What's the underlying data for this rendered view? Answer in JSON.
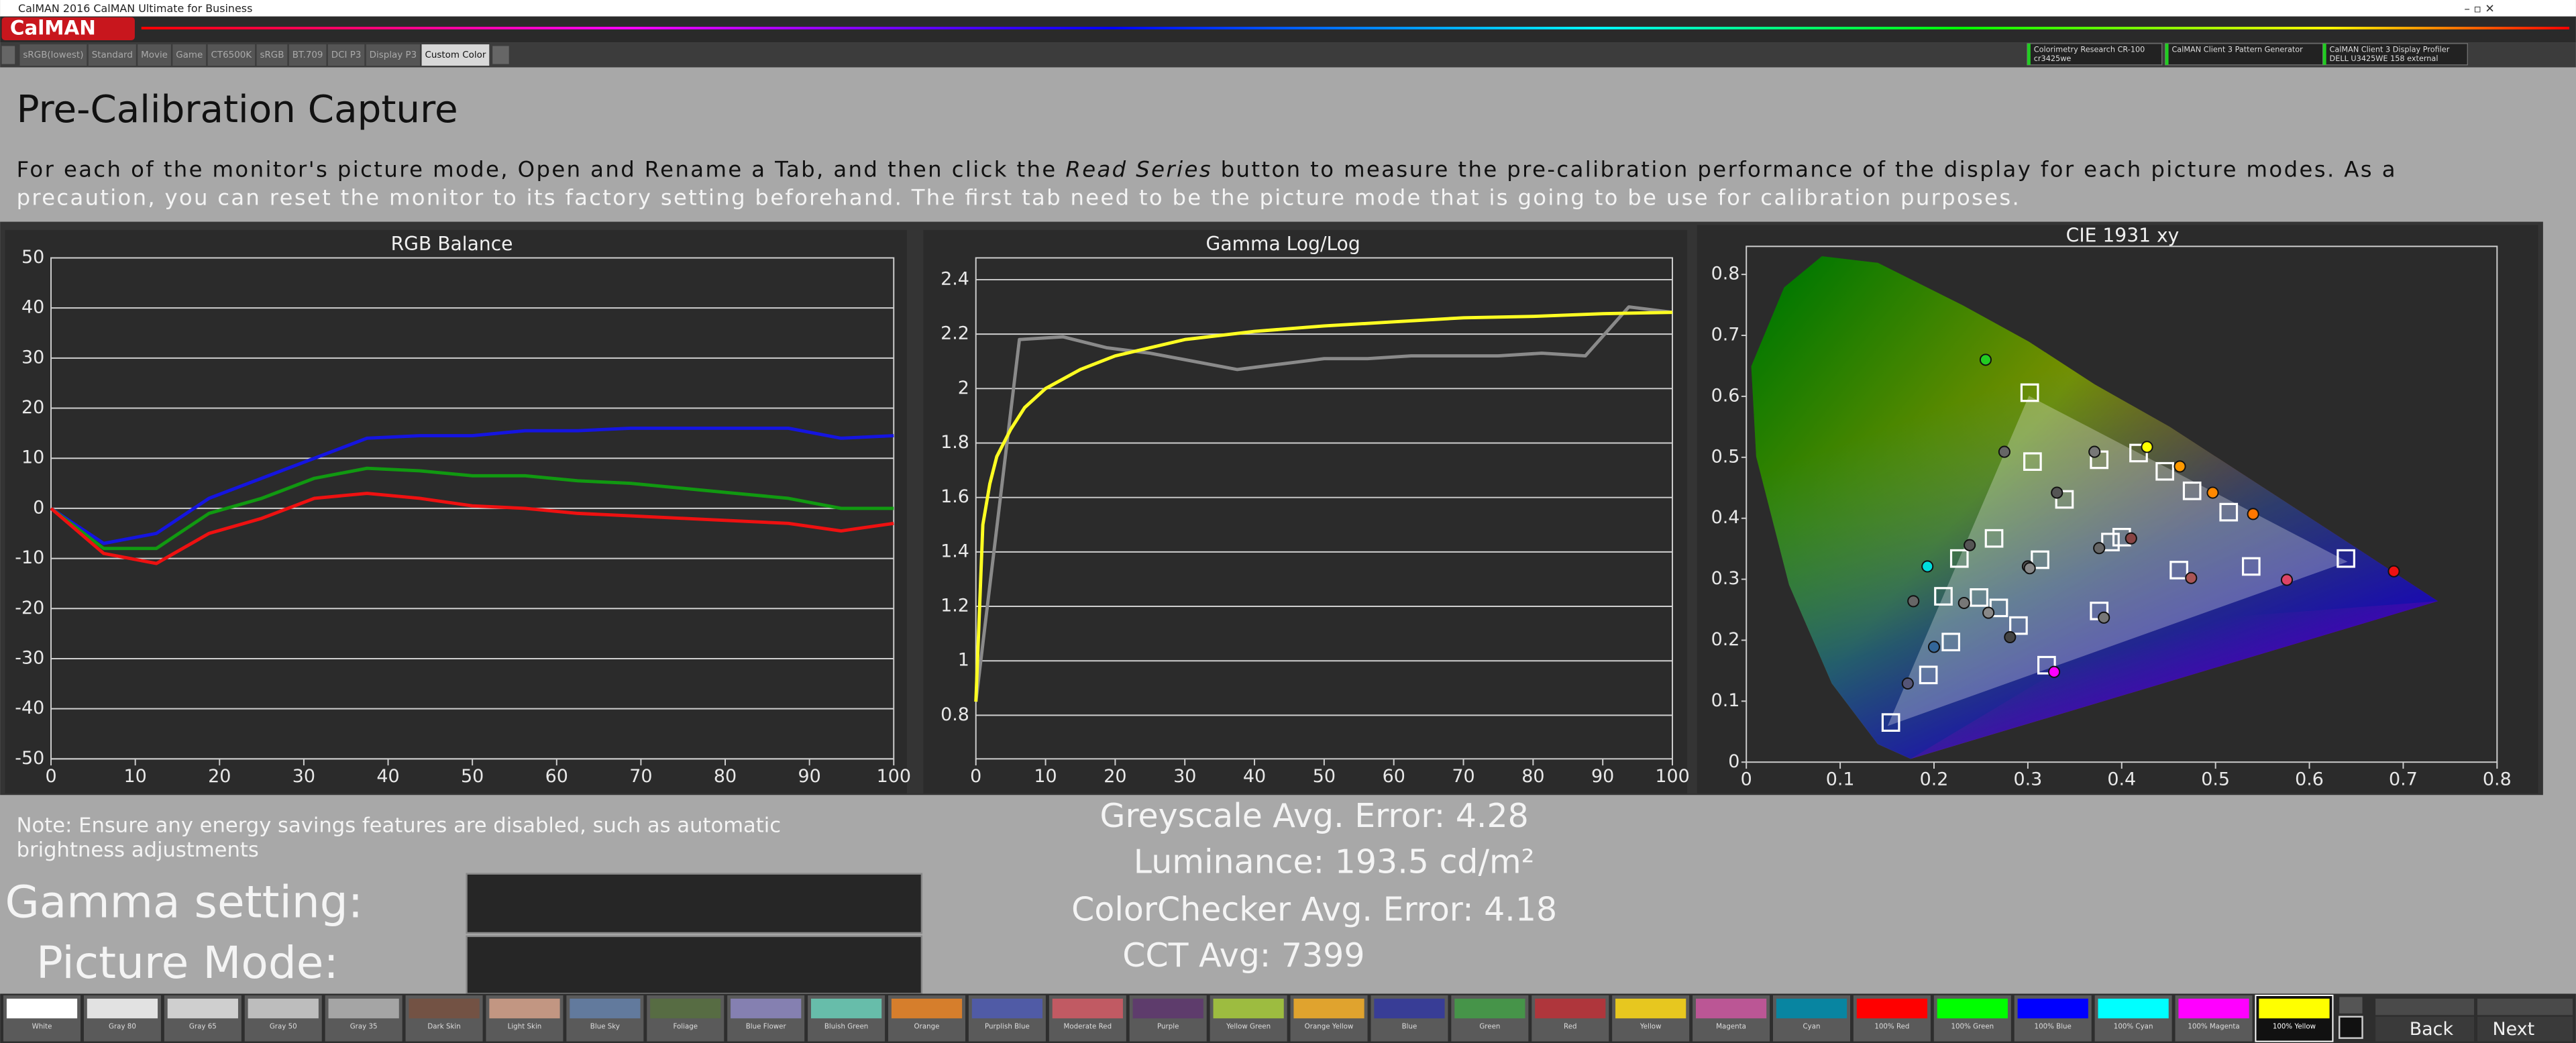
{
  "window": {
    "title": "CalMAN 2016 CalMAN Ultimate for Business"
  },
  "app_button": "CalMAN",
  "tabs": [
    "sRGB(lowest)",
    "Standard",
    "Movie",
    "Game",
    "CT6500K",
    "sRGB",
    "BT.709",
    "DCI P3",
    "Display P3",
    "Custom Color"
  ],
  "devices": [
    {
      "name": "Colorimetry Research CR-100",
      "detail": "cr3425we"
    },
    {
      "name": "CalMAN Client 3 Pattern Generator",
      "detail": ""
    },
    {
      "name": "CalMAN Client 3 Display Profiler",
      "detail": "DELL U3425WE 158 external"
    }
  ],
  "heading": "Pre-Calibration Capture",
  "instructions": {
    "before": "For each of the monitor's picture mode, Open and Rename a Tab, and then click the ",
    "emphasis": "Read Series",
    "after": " button to measure the pre-calibration performance of the display for each picture modes. As a",
    "line2": "precaution, you can reset the monitor to its factory setting beforehand. The first tab need to be the picture mode that is going to be use for calibration purposes."
  },
  "chart_data": [
    {
      "type": "line",
      "title": "RGB Balance",
      "x": [
        0,
        6.25,
        12.5,
        18.75,
        25,
        31.25,
        37.5,
        43.75,
        50,
        56.25,
        62.5,
        68.75,
        75,
        81.25,
        87.5,
        93.75,
        100
      ],
      "series": [
        {
          "color": "#1515e0",
          "values": [
            0,
            -7,
            -5,
            2,
            6,
            10,
            14,
            14.5,
            14.5,
            15.5,
            15.5,
            16,
            16,
            16,
            16,
            14,
            14.5
          ]
        },
        {
          "color": "#119911",
          "values": [
            0,
            -8,
            -8,
            -1,
            2,
            6,
            8,
            7.5,
            6.5,
            6.5,
            5.5,
            5,
            4,
            3,
            2,
            0,
            0
          ]
        },
        {
          "color": "#ee1111",
          "values": [
            0,
            -9,
            -11,
            -5,
            -2,
            2,
            3,
            2,
            0.5,
            0,
            -1,
            -1.5,
            -2,
            -2.5,
            -3,
            -4.5,
            -3
          ]
        }
      ],
      "xlim": [
        0,
        100
      ],
      "xticks": [
        0,
        10,
        20,
        30,
        40,
        50,
        60,
        70,
        80,
        90,
        100
      ],
      "ylim": [
        -50,
        50
      ],
      "yticks": [
        -50,
        -40,
        -30,
        -20,
        -10,
        0,
        10,
        20,
        30,
        40,
        50
      ],
      "grid": true
    },
    {
      "type": "line",
      "title": "Gamma Log/Log",
      "series": [
        {
          "color": "#8a8a8a",
          "x": [
            0,
            6.25,
            12.5,
            18.75,
            25,
            31.25,
            37.5,
            43.75,
            50,
            56.25,
            62.5,
            68.75,
            75,
            81.25,
            87.5,
            93.75,
            100
          ],
          "values": [
            0.85,
            2.18,
            2.19,
            2.15,
            2.13,
            2.1,
            2.07,
            2.09,
            2.11,
            2.11,
            2.12,
            2.12,
            2.12,
            2.13,
            2.12,
            2.3,
            2.28
          ]
        },
        {
          "color": "#ffff22",
          "x": [
            0,
            1,
            2,
            3,
            5,
            7,
            10,
            15,
            20,
            30,
            40,
            50,
            60,
            70,
            80,
            90,
            100
          ],
          "values": [
            0.85,
            1.5,
            1.65,
            1.75,
            1.85,
            1.93,
            2.0,
            2.07,
            2.12,
            2.18,
            2.21,
            2.23,
            2.245,
            2.26,
            2.265,
            2.275,
            2.28
          ]
        }
      ],
      "xlim": [
        0,
        100
      ],
      "xticks": [
        0,
        10,
        20,
        30,
        40,
        50,
        60,
        70,
        80,
        90,
        100
      ],
      "ylim": [
        0.64,
        2.48
      ],
      "yticks": [
        0.8,
        1,
        1.2,
        1.4,
        1.6,
        1.8,
        2,
        2.2,
        2.4
      ],
      "grid": true
    },
    {
      "type": "scatter",
      "title": "CIE 1931 xy",
      "series": [
        {
          "marker": "square",
          "color": "#ffffff",
          "x": [
            0.302,
            0.305,
            0.376,
            0.418,
            0.446,
            0.475,
            0.514,
            0.538,
            0.639,
            0.461,
            0.388,
            0.376,
            0.4,
            0.339,
            0.313,
            0.264,
            0.227,
            0.21,
            0.248,
            0.269,
            0.29,
            0.218,
            0.194,
            0.32,
            0.154
          ],
          "y": [
            0.606,
            0.493,
            0.496,
            0.507,
            0.477,
            0.445,
            0.41,
            0.321,
            0.334,
            0.315,
            0.361,
            0.248,
            0.369,
            0.431,
            0.332,
            0.367,
            0.334,
            0.272,
            0.27,
            0.253,
            0.224,
            0.197,
            0.143,
            0.159,
            0.065
          ]
        },
        {
          "marker": "circle",
          "x": [
            0.255,
            0.275,
            0.371,
            0.427,
            0.462,
            0.497,
            0.54,
            0.69,
            0.576,
            0.474,
            0.41,
            0.376,
            0.331,
            0.3,
            0.238,
            0.193,
            0.178,
            0.232,
            0.258,
            0.281,
            0.2,
            0.172,
            0.381,
            0.328,
            0.302
          ],
          "y": [
            0.66,
            0.509,
            0.509,
            0.517,
            0.485,
            0.442,
            0.407,
            0.313,
            0.299,
            0.302,
            0.367,
            0.351,
            0.442,
            0.321,
            0.356,
            0.321,
            0.264,
            0.261,
            0.245,
            0.205,
            0.189,
            0.129,
            0.237,
            0.148,
            0.318
          ],
          "colors": [
            "#22cc22",
            "#666666",
            "#777777",
            "#ffff00",
            "#ff9900",
            "#ff8800",
            "#ff7700",
            "#ee1111",
            "#dd4466",
            "#aa5555",
            "#884444",
            "#666666",
            "#555555",
            "#555555",
            "#555555",
            "#00dddd",
            "#666666",
            "#777777",
            "#888888",
            "#444444",
            "#336699",
            "#555577",
            "#777777",
            "#ff00ff",
            "#888888"
          ]
        }
      ],
      "xlim": [
        0,
        0.8
      ],
      "xticks": [
        0,
        0.1,
        0.2,
        0.3,
        0.4,
        0.5,
        0.6,
        0.7,
        0.8
      ],
      "ylim": [
        0,
        0.846
      ],
      "yticks": [
        0,
        0.1,
        0.2,
        0.3,
        0.4,
        0.5,
        0.6,
        0.7,
        0.8
      ],
      "grid": false
    }
  ],
  "note": [
    "Note: Ensure any energy savings features are disabled, such as automatic",
    "brightness adjustments"
  ],
  "fields": [
    {
      "label": "Gamma setting:"
    },
    {
      "label": "Picture Mode:"
    }
  ],
  "stats": [
    "Greyscale Avg. Error: 4.28",
    "Luminance: 193.5 cd/m²",
    "ColorChecker Avg. Error: 4.18",
    "CCT Avg: 7399"
  ],
  "swatches": [
    {
      "name": "White",
      "color": "#ffffff"
    },
    {
      "name": "Gray 80",
      "color": "#e2e2e2"
    },
    {
      "name": "Gray 65",
      "color": "#cfcfcf"
    },
    {
      "name": "Gray 50",
      "color": "#bdbdbd"
    },
    {
      "name": "Gray 35",
      "color": "#a5a5a5"
    },
    {
      "name": "Dark Skin",
      "color": "#735244"
    },
    {
      "name": "Light Skin",
      "color": "#c29682"
    },
    {
      "name": "Blue Sky",
      "color": "#627a9d"
    },
    {
      "name": "Foliage",
      "color": "#576c43"
    },
    {
      "name": "Blue Flower",
      "color": "#8580b1"
    },
    {
      "name": "Bluish Green",
      "color": "#67bdaa"
    },
    {
      "name": "Orange",
      "color": "#d67e2c"
    },
    {
      "name": "Purplish Blue",
      "color": "#505ba6"
    },
    {
      "name": "Moderate Red",
      "color": "#c15a63"
    },
    {
      "name": "Purple",
      "color": "#5e3c6c"
    },
    {
      "name": "Yellow Green",
      "color": "#9dbc40"
    },
    {
      "name": "Orange Yellow",
      "color": "#e0a32e"
    },
    {
      "name": "Blue",
      "color": "#383d96"
    },
    {
      "name": "Green",
      "color": "#469449"
    },
    {
      "name": "Red",
      "color": "#af363c"
    },
    {
      "name": "Yellow",
      "color": "#e7c71f"
    },
    {
      "name": "Magenta",
      "color": "#bb5695"
    },
    {
      "name": "Cyan",
      "color": "#0885a1"
    },
    {
      "name": "100% Red",
      "color": "#ff0000"
    },
    {
      "name": "100% Green",
      "color": "#00ff00"
    },
    {
      "name": "100% Blue",
      "color": "#0000ff"
    },
    {
      "name": "100% Cyan",
      "color": "#00ffff"
    },
    {
      "name": "100% Magenta",
      "color": "#ff00ff"
    },
    {
      "name": "100% Yellow",
      "color": "#ffff00"
    }
  ],
  "nav": {
    "back": "Back",
    "next": "Next"
  }
}
